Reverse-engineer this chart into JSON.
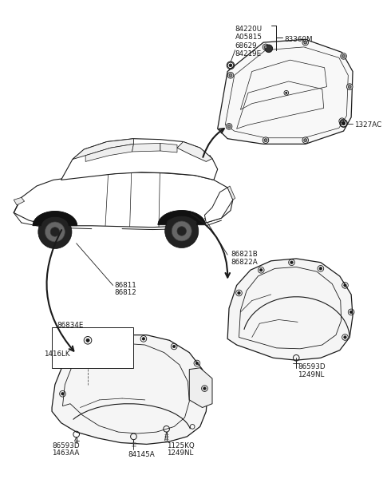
{
  "bg_color": "#ffffff",
  "lc": "#1a1a1a",
  "tc": "#1a1a1a",
  "figsize": [
    4.8,
    6.0
  ],
  "dpi": 100,
  "parts": {
    "panel_labels_top": [
      "84220U",
      "A05815",
      "68629",
      "84219E"
    ],
    "panel_bracket_label": "83360M",
    "panel_bolt_label": "1327AC",
    "rear_guard_labels": [
      "86821B",
      "86822A"
    ],
    "rear_guard_part_labels": [
      "86593D",
      "1249NL"
    ],
    "front_callout_labels": [
      "86811",
      "86812"
    ],
    "front_detail_labels_tl": "86834E",
    "front_detail_labels_l": "1416LK",
    "front_detail_labels_bl": [
      "86593D",
      "1463AA"
    ],
    "front_detail_labels_bc": "84145A",
    "front_detail_labels_br": [
      "1125KQ",
      "1249NL"
    ]
  }
}
